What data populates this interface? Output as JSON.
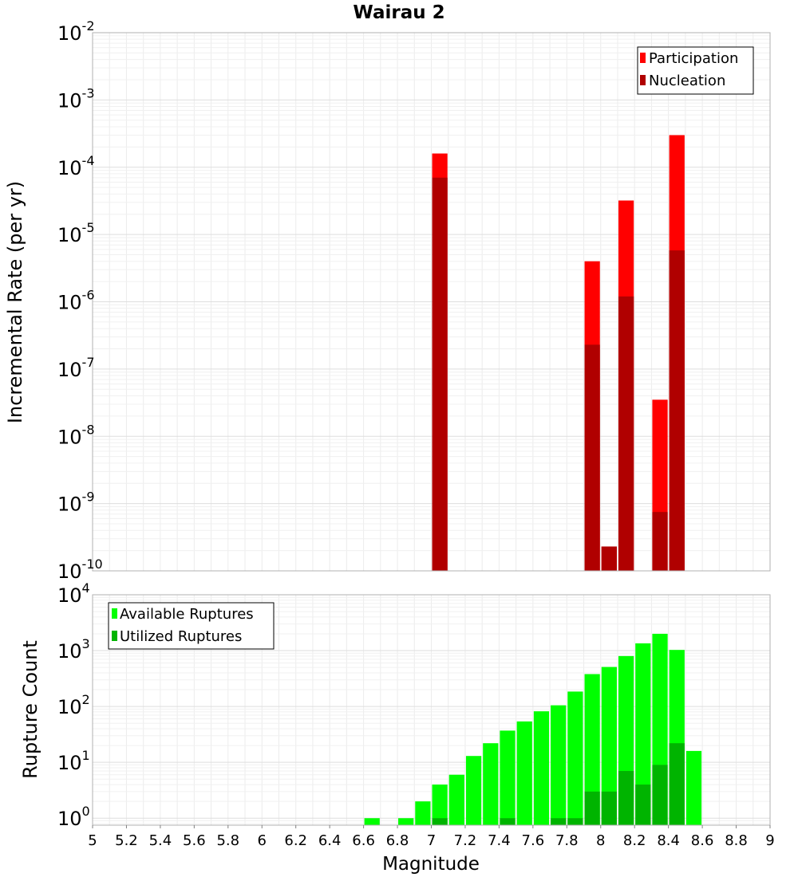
{
  "chart_data": [
    {
      "type": "bar",
      "title": "Wairau 2",
      "ylabel": "Incremental Rate (per yr)",
      "xlabel": "",
      "xlim": [
        5,
        9
      ],
      "ylim": [
        1e-10,
        0.01
      ],
      "y_scale": "log",
      "y_ticks": [
        {
          "base": "10",
          "exp": "-2"
        },
        {
          "base": "10",
          "exp": "-3"
        },
        {
          "base": "10",
          "exp": "-4"
        },
        {
          "base": "10",
          "exp": "-5"
        },
        {
          "base": "10",
          "exp": "-6"
        },
        {
          "base": "10",
          "exp": "-7"
        },
        {
          "base": "10",
          "exp": "-8"
        },
        {
          "base": "10",
          "exp": "-9"
        },
        {
          "base": "10",
          "exp": "-10"
        }
      ],
      "grid": true,
      "legend_position": "top-right",
      "series": [
        {
          "name": "Participation",
          "color": "#ff0000",
          "points": [
            {
              "x": 7.05,
              "y": 0.00016
            },
            {
              "x": 7.95,
              "y": 4e-06
            },
            {
              "x": 8.05,
              "y": 2.3e-10
            },
            {
              "x": 8.15,
              "y": 3.2e-05
            },
            {
              "x": 8.35,
              "y": 3.5e-08
            },
            {
              "x": 8.45,
              "y": 0.0003
            }
          ]
        },
        {
          "name": "Nucleation",
          "color": "#b00000",
          "points": [
            {
              "x": 7.05,
              "y": 7e-05
            },
            {
              "x": 7.95,
              "y": 2.3e-07
            },
            {
              "x": 8.05,
              "y": 2.3e-10
            },
            {
              "x": 8.15,
              "y": 1.2e-06
            },
            {
              "x": 8.35,
              "y": 7.5e-10
            },
            {
              "x": 8.45,
              "y": 5.8e-06
            }
          ]
        }
      ]
    },
    {
      "type": "bar",
      "title": "",
      "ylabel": "Rupture Count",
      "xlabel": "Magnitude",
      "xlim": [
        5,
        9
      ],
      "ylim": [
        0.75,
        10000
      ],
      "y_scale": "log",
      "x_ticks": [
        "5",
        "5.2",
        "5.4",
        "5.6",
        "5.8",
        "6",
        "6.2",
        "6.4",
        "6.6",
        "6.8",
        "7",
        "7.2",
        "7.4",
        "7.6",
        "7.8",
        "8",
        "8.2",
        "8.4",
        "8.6",
        "8.8",
        "9"
      ],
      "y_ticks": [
        {
          "base": "10",
          "exp": "4"
        },
        {
          "base": "10",
          "exp": "3"
        },
        {
          "base": "10",
          "exp": "2"
        },
        {
          "base": "10",
          "exp": "1"
        },
        {
          "base": "10",
          "exp": "0"
        }
      ],
      "grid": true,
      "legend_position": "top-left",
      "series": [
        {
          "name": "Available Ruptures",
          "color": "#00ff00",
          "points": [
            {
              "x": 6.65,
              "y": 1
            },
            {
              "x": 6.85,
              "y": 1
            },
            {
              "x": 6.95,
              "y": 2
            },
            {
              "x": 7.05,
              "y": 4
            },
            {
              "x": 7.15,
              "y": 6
            },
            {
              "x": 7.25,
              "y": 13
            },
            {
              "x": 7.35,
              "y": 22
            },
            {
              "x": 7.45,
              "y": 37
            },
            {
              "x": 7.55,
              "y": 54
            },
            {
              "x": 7.65,
              "y": 82
            },
            {
              "x": 7.75,
              "y": 105
            },
            {
              "x": 7.85,
              "y": 185
            },
            {
              "x": 7.95,
              "y": 380
            },
            {
              "x": 8.05,
              "y": 510
            },
            {
              "x": 8.15,
              "y": 800
            },
            {
              "x": 8.25,
              "y": 1350
            },
            {
              "x": 8.35,
              "y": 2000
            },
            {
              "x": 8.45,
              "y": 1030
            },
            {
              "x": 8.55,
              "y": 16
            }
          ]
        },
        {
          "name": "Utilized Ruptures",
          "color": "#00b400",
          "points": [
            {
              "x": 7.05,
              "y": 1
            },
            {
              "x": 7.45,
              "y": 1
            },
            {
              "x": 7.75,
              "y": 1
            },
            {
              "x": 7.85,
              "y": 1
            },
            {
              "x": 7.95,
              "y": 3
            },
            {
              "x": 8.05,
              "y": 3
            },
            {
              "x": 8.15,
              "y": 7
            },
            {
              "x": 8.25,
              "y": 4
            },
            {
              "x": 8.35,
              "y": 9
            },
            {
              "x": 8.45,
              "y": 22
            }
          ]
        }
      ]
    }
  ]
}
